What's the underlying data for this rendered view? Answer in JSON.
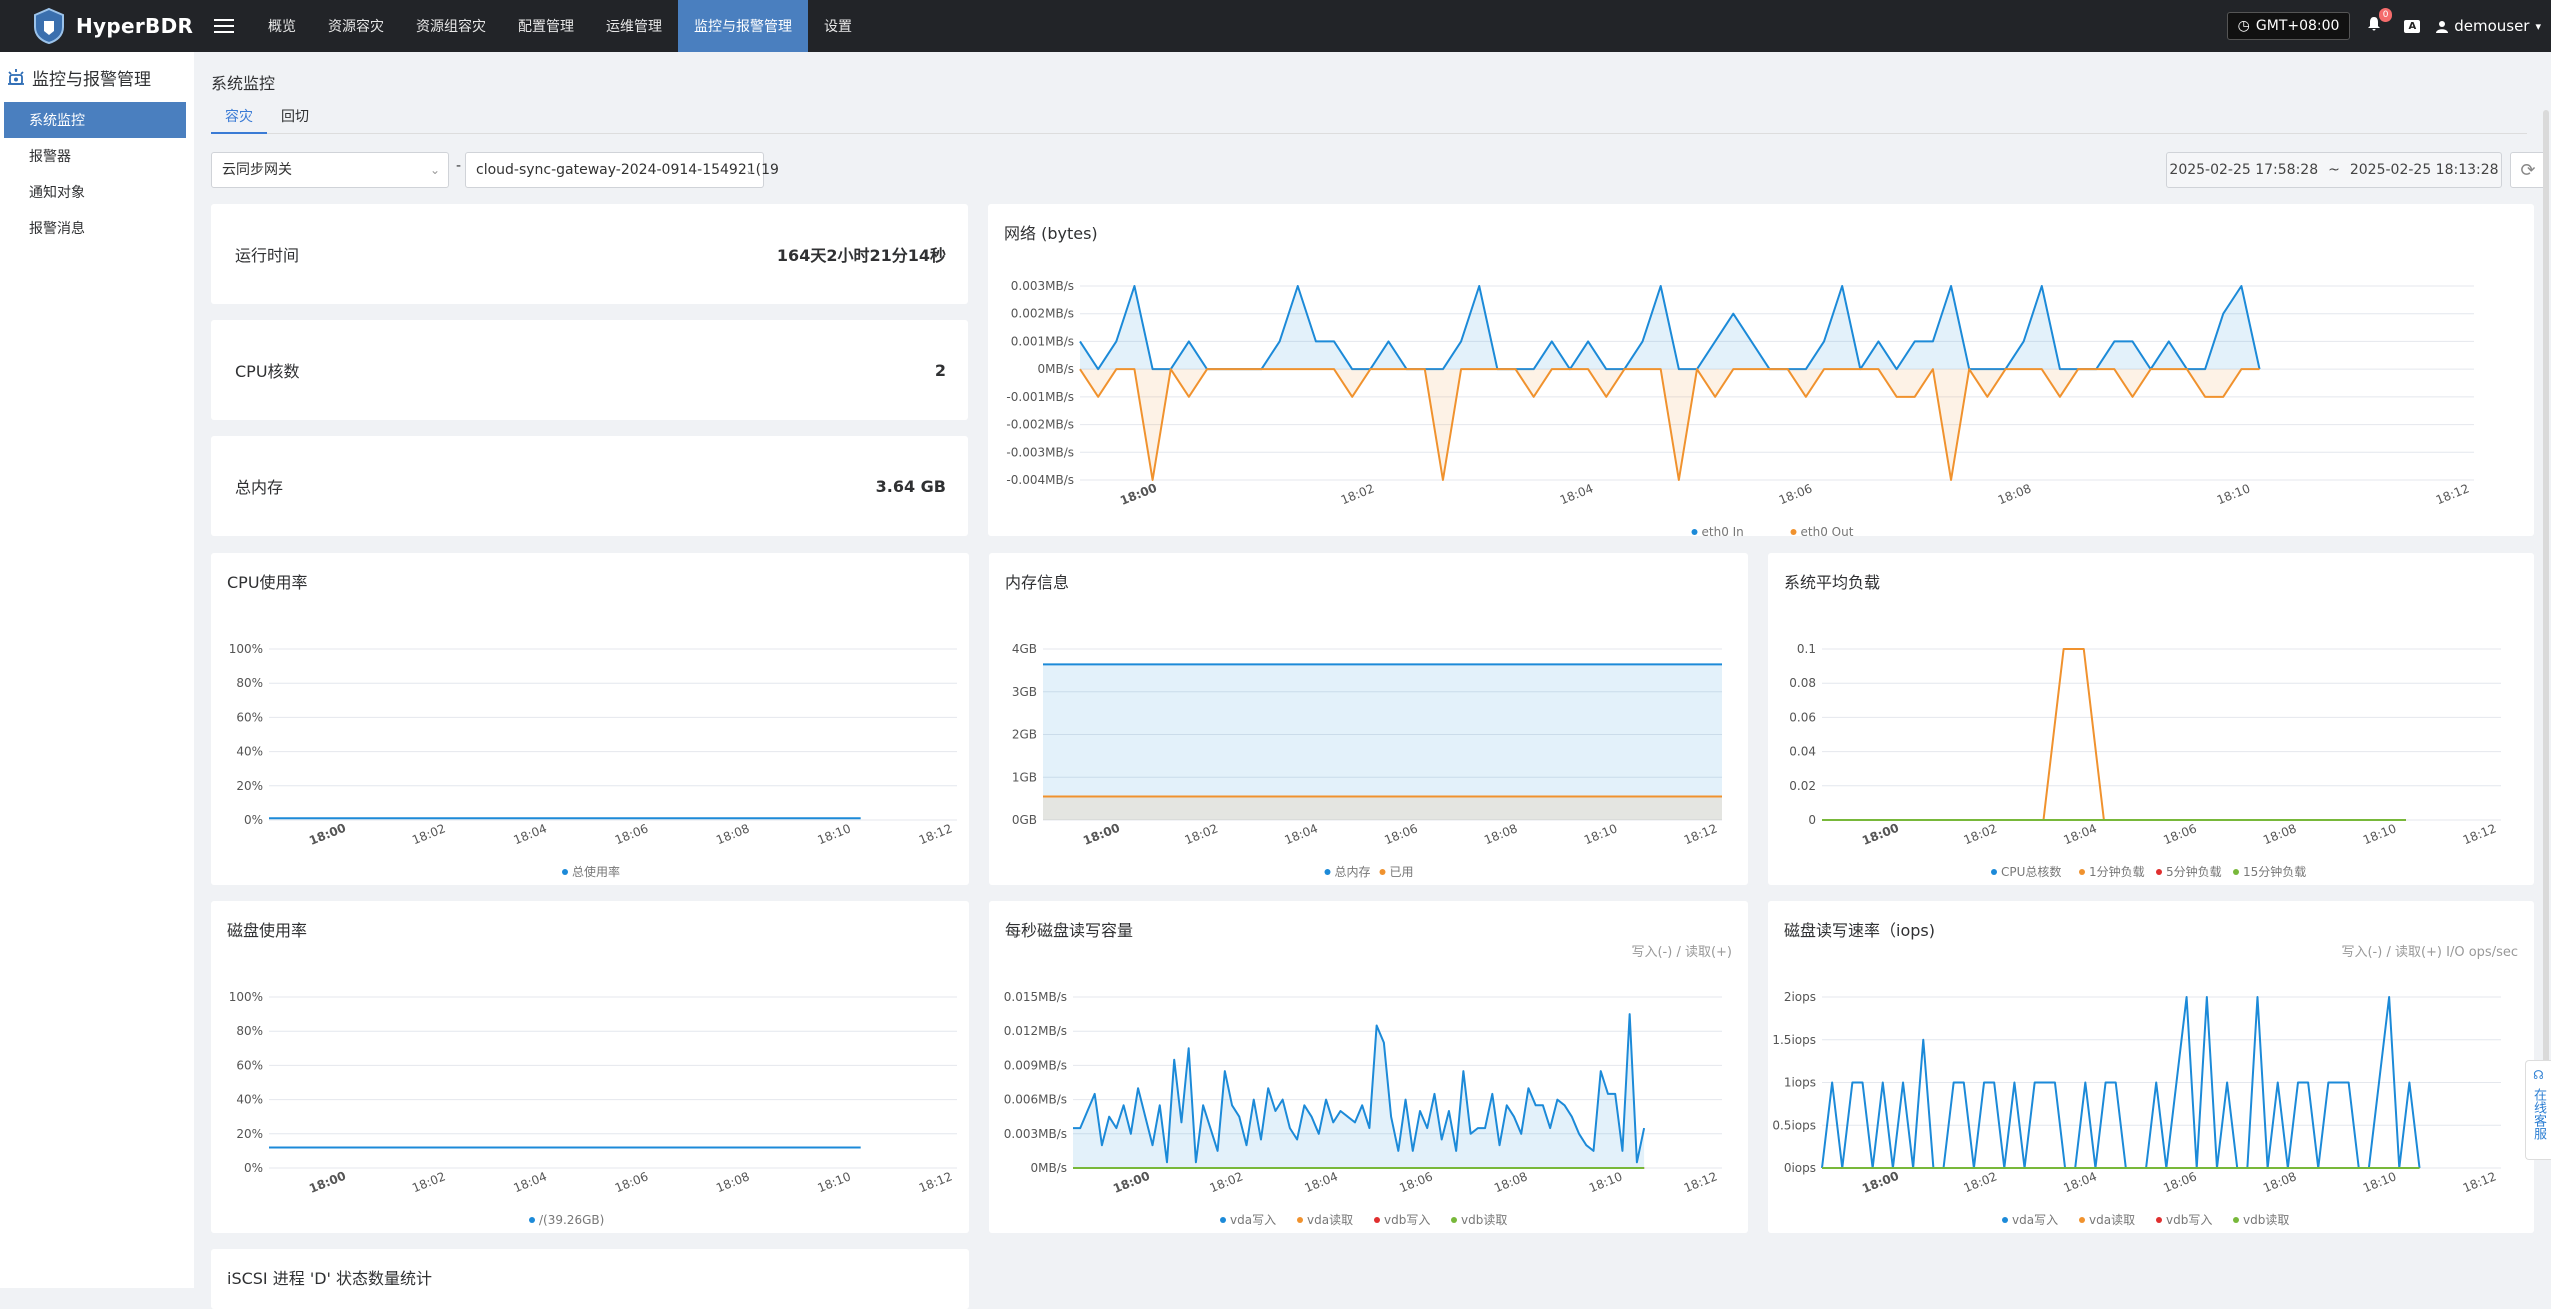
{
  "topbar": {
    "brand": "HyperBDR",
    "nav": [
      "概览",
      "资源容灾",
      "资源组容灾",
      "配置管理",
      "运维管理",
      "监控与报警管理",
      "设置"
    ],
    "nav_active": 5,
    "timezone": "GMT+08:00",
    "notification_count": "0",
    "lang_label": "A",
    "username": "demouser"
  },
  "sidebar": {
    "title": "监控与报警管理",
    "items": [
      "系统监控",
      "报警器",
      "通知对象",
      "报警消息"
    ],
    "active": 0
  },
  "page": {
    "title": "系统监控",
    "tabs": [
      "容灾",
      "回切"
    ],
    "active_tab": 0,
    "select_type": "云同步网关",
    "select_host": "cloud-sync-gateway-2024-0914-154921(19",
    "separator": "-",
    "range_start": "2025-02-25 17:58:28",
    "range_sep": "~",
    "range_end": "2025-02-25 18:13:28"
  },
  "stats": [
    {
      "label": "运行时间",
      "value": "164天2小时21分14秒"
    },
    {
      "label": "CPU核数",
      "value": "2"
    },
    {
      "label": "总内存",
      "value": "3.64 GB"
    }
  ],
  "time_ticks": [
    "18:00",
    "18:02",
    "18:04",
    "18:06",
    "18:08",
    "18:10",
    "18:12"
  ],
  "colors": {
    "blue": "#1c8ad8",
    "orange": "#f0922e",
    "red": "#e02f2f",
    "green": "#78b83a",
    "active": "#4a7fbf"
  },
  "charts": {
    "network": {
      "title": "网络 (bytes)",
      "type": "area",
      "y_ticks": [
        "0.003MB/s",
        "0.002MB/s",
        "0.001MB/s",
        "0MB/s",
        "-0.001MB/s",
        "-0.002MB/s",
        "-0.003MB/s",
        "-0.004MB/s"
      ],
      "legend": [
        "eth0 In",
        "eth0 Out"
      ]
    },
    "cpu": {
      "title": "CPU使用率",
      "type": "line",
      "y_ticks": [
        "100%",
        "80%",
        "60%",
        "40%",
        "20%",
        "0%"
      ],
      "legend": [
        "总使用率"
      ]
    },
    "memory": {
      "title": "内存信息",
      "type": "area",
      "y_ticks": [
        "4GB",
        "3GB",
        "2GB",
        "1GB",
        "0GB"
      ],
      "legend": [
        "总内存",
        "已用"
      ]
    },
    "load": {
      "title": "系统平均负载",
      "type": "line",
      "y_ticks": [
        "0.1",
        "0.08",
        "0.06",
        "0.04",
        "0.02",
        "0"
      ],
      "legend": [
        "CPU总核数",
        "1分钟负载",
        "5分钟负载",
        "15分钟负载"
      ]
    },
    "disk_usage": {
      "title": "磁盘使用率",
      "type": "line",
      "y_ticks": [
        "100%",
        "80%",
        "60%",
        "40%",
        "20%",
        "0%"
      ],
      "legend": [
        "/(39.26GB)"
      ]
    },
    "disk_throughput": {
      "title": "每秒磁盘读写容量",
      "subtitle": "写入(-) / 读取(+)",
      "type": "area",
      "y_ticks": [
        "0.015MB/s",
        "0.012MB/s",
        "0.009MB/s",
        "0.006MB/s",
        "0.003MB/s",
        "0MB/s"
      ],
      "legend": [
        "vda写入",
        "vda读取",
        "vdb写入",
        "vdb读取"
      ]
    },
    "disk_iops": {
      "title": "磁盘读写速率（iops)",
      "subtitle": "写入(-) / 读取(+) I/O ops/sec",
      "type": "line",
      "y_ticks": [
        "2iops",
        "1.5iops",
        "1iops",
        "0.5iops",
        "0iops"
      ],
      "legend": [
        "vda写入",
        "vda读取",
        "vdb写入",
        "vdb读取"
      ]
    },
    "iscsi": {
      "title": "iSCSI 进程 'D' 状态数量统计"
    }
  },
  "chart_data": [
    {
      "type": "area",
      "title": "网络 (bytes)",
      "ylim": [
        -0.004,
        0.003
      ],
      "series": [
        {
          "name": "eth0 In",
          "values": [
            0.001,
            0.0,
            0.001,
            0.003,
            0.0,
            0.0,
            0.001,
            0.0,
            0.0,
            0.0,
            0.0,
            0.001,
            0.003,
            0.001,
            0.001,
            0.0,
            0.0,
            0.001,
            0.0,
            0.0,
            0.0,
            0.001,
            0.003,
            0.0,
            0.0,
            0.0,
            0.001,
            0.0,
            0.001,
            0.0,
            0.0,
            0.001,
            0.003,
            0.0,
            0.0,
            0.001,
            0.002,
            0.001,
            0.0,
            0.0,
            0.0,
            0.001,
            0.003,
            0.0,
            0.001,
            0.0,
            0.001,
            0.001,
            0.003,
            0.0,
            0.0,
            0.0,
            0.001,
            0.003,
            0.0,
            0.0,
            0.0,
            0.001,
            0.001,
            0.0,
            0.001,
            0.0,
            0.0,
            0.002,
            0.003,
            0.0
          ]
        },
        {
          "name": "eth0 Out",
          "values": [
            0.0,
            -0.001,
            0.0,
            0.0,
            -0.004,
            0.0,
            -0.001,
            0.0,
            0.0,
            0.0,
            0.0,
            0.0,
            0.0,
            0.0,
            0.0,
            -0.001,
            0.0,
            0.0,
            0.0,
            0.0,
            -0.004,
            0.0,
            0.0,
            0.0,
            0.0,
            -0.001,
            0.0,
            0.0,
            0.0,
            -0.001,
            0.0,
            0.0,
            0.0,
            -0.004,
            0.0,
            -0.001,
            0.0,
            0.0,
            0.0,
            0.0,
            -0.001,
            0.0,
            0.0,
            0.0,
            0.0,
            -0.001,
            -0.001,
            0.0,
            -0.004,
            0.0,
            -0.001,
            0.0,
            0.0,
            0.0,
            -0.001,
            0.0,
            0.0,
            0.0,
            -0.001,
            0.0,
            0.0,
            0.0,
            -0.001,
            -0.001,
            0.0,
            0.0
          ]
        }
      ]
    },
    {
      "type": "line",
      "title": "CPU使用率",
      "ylim": [
        0,
        100
      ],
      "series": [
        {
          "name": "总使用率",
          "values": [
            1,
            1,
            1,
            1,
            1,
            1,
            1,
            1,
            1,
            1,
            1,
            1,
            1,
            1,
            1,
            1,
            1,
            1,
            1,
            1
          ]
        }
      ]
    },
    {
      "type": "area",
      "title": "内存信息",
      "ylim": [
        0,
        4
      ],
      "series": [
        {
          "name": "总内存",
          "values": [
            3.64,
            3.64,
            3.64,
            3.64,
            3.64,
            3.64,
            3.64,
            3.64,
            3.64,
            3.64,
            3.64,
            3.64,
            3.64,
            3.64,
            3.64,
            3.64,
            3.64,
            3.64,
            3.64,
            3.64
          ]
        },
        {
          "name": "已用",
          "values": [
            0.55,
            0.55,
            0.55,
            0.55,
            0.55,
            0.55,
            0.55,
            0.55,
            0.55,
            0.55,
            0.55,
            0.55,
            0.55,
            0.55,
            0.55,
            0.55,
            0.55,
            0.55
          ]
        }
      ]
    },
    {
      "type": "line",
      "title": "系统平均负载",
      "ylim": [
        0,
        0.1
      ],
      "series": [
        {
          "name": "CPU总核数",
          "values": [
            0,
            0,
            0,
            0,
            0,
            0,
            0,
            0,
            0,
            0,
            0,
            0,
            0,
            0,
            0,
            0,
            0,
            0,
            0,
            0,
            0,
            0,
            0,
            0,
            0,
            0,
            0,
            0,
            0,
            0
          ]
        },
        {
          "name": "1分钟负载",
          "values": [
            0,
            0,
            0,
            0,
            0,
            0,
            0,
            0,
            0,
            0,
            0,
            0,
            0.1,
            0.1,
            0,
            0,
            0,
            0,
            0,
            0,
            0,
            0,
            0,
            0,
            0,
            0,
            0,
            0,
            0,
            0
          ]
        },
        {
          "name": "5分钟负载",
          "values": [
            0,
            0,
            0,
            0,
            0,
            0,
            0,
            0,
            0,
            0,
            0,
            0,
            0,
            0,
            0,
            0,
            0,
            0,
            0,
            0,
            0,
            0,
            0,
            0,
            0,
            0,
            0,
            0,
            0,
            0
          ]
        },
        {
          "name": "15分钟负载",
          "values": [
            0,
            0,
            0,
            0,
            0,
            0,
            0,
            0,
            0,
            0,
            0,
            0,
            0,
            0,
            0,
            0,
            0,
            0,
            0,
            0,
            0,
            0,
            0,
            0,
            0,
            0,
            0,
            0,
            0,
            0
          ]
        }
      ]
    },
    {
      "type": "line",
      "title": "磁盘使用率",
      "ylim": [
        0,
        100
      ],
      "series": [
        {
          "name": "/(39.26GB)",
          "values": [
            12,
            12,
            12,
            12,
            12,
            12,
            12,
            12,
            12,
            12,
            12,
            12,
            12,
            12,
            12,
            12,
            12,
            12,
            12,
            12
          ]
        }
      ]
    },
    {
      "type": "area",
      "title": "每秒磁盘读写容量",
      "ylim": [
        0,
        0.015
      ],
      "series": [
        {
          "name": "vda写入",
          "values": [
            0.0035,
            0.0035,
            0.005,
            0.0065,
            0.002,
            0.0045,
            0.0035,
            0.0055,
            0.003,
            0.007,
            0.0045,
            0.002,
            0.0055,
            0.0005,
            0.0095,
            0.004,
            0.0105,
            0.0005,
            0.0055,
            0.0035,
            0.0015,
            0.0085,
            0.0055,
            0.0045,
            0.002,
            0.006,
            0.0025,
            0.007,
            0.005,
            0.006,
            0.0035,
            0.0025,
            0.0055,
            0.0045,
            0.003,
            0.006,
            0.004,
            0.005,
            0.0045,
            0.004,
            0.0055,
            0.0035,
            0.0125,
            0.011,
            0.0045,
            0.0015,
            0.006,
            0.0015,
            0.005,
            0.0035,
            0.0065,
            0.0025,
            0.005,
            0.0015,
            0.0085,
            0.003,
            0.0035,
            0.0035,
            0.0065,
            0.002,
            0.0055,
            0.0045,
            0.003,
            0.007,
            0.0055,
            0.0055,
            0.0035,
            0.006,
            0.0055,
            0.0045,
            0.003,
            0.002,
            0.0015,
            0.0085,
            0.0065,
            0.0065,
            0.0015,
            0.0135,
            0.0005,
            0.0035
          ]
        },
        {
          "name": "vda读取",
          "values": [
            0,
            0,
            0,
            0,
            0,
            0,
            0,
            0,
            0,
            0
          ]
        },
        {
          "name": "vdb写入",
          "values": [
            0,
            0,
            0,
            0,
            0,
            0,
            0,
            0,
            0,
            0
          ]
        },
        {
          "name": "vdb读取",
          "values": [
            0,
            0,
            0,
            0,
            0,
            0,
            0,
            0,
            0,
            0
          ]
        }
      ]
    },
    {
      "type": "line",
      "title": "磁盘读写速率（iops)",
      "ylim": [
        0,
        2
      ],
      "series": [
        {
          "name": "vda写入",
          "values": [
            0,
            1,
            0,
            1,
            1,
            0,
            1,
            0,
            1,
            0,
            1.5,
            0,
            0,
            1,
            1,
            0,
            1,
            1,
            0,
            1,
            0,
            1,
            1,
            1,
            0,
            0,
            1,
            0,
            1,
            1,
            0,
            0,
            0,
            1,
            0,
            1,
            2,
            0,
            2,
            0,
            1,
            0,
            0,
            2,
            0,
            1,
            0,
            1,
            1,
            0,
            1,
            1,
            1,
            0,
            0,
            1,
            2,
            0,
            1,
            0
          ]
        },
        {
          "name": "vda读取",
          "values": [
            0,
            0,
            0,
            0,
            0,
            0,
            0,
            0,
            0,
            0
          ]
        },
        {
          "name": "vdb写入",
          "values": [
            0,
            0,
            0,
            0,
            0,
            0,
            0,
            0,
            0,
            0
          ]
        },
        {
          "name": "vdb读取",
          "values": [
            0,
            0,
            0,
            0,
            0,
            0,
            0,
            0,
            0,
            0
          ]
        }
      ]
    }
  ],
  "float_help": {
    "label": "在线客服"
  }
}
